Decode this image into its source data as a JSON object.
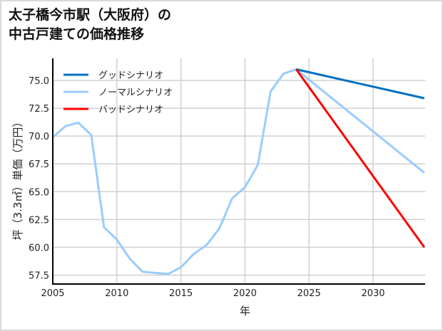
{
  "title": {
    "line1": "太子橋今市駅（大阪府）の",
    "line2": "中古戸建ての価格推移"
  },
  "chart_data": {
    "type": "line",
    "title": "太子橋今市駅（大阪府）の中古戸建ての価格推移",
    "xlabel": "年",
    "ylabel": "坪（3.3㎡）単価（万円）",
    "xlim": [
      2005,
      2034
    ],
    "ylim": [
      56.7,
      77.0
    ],
    "xticks": [
      2005,
      2010,
      2015,
      2020,
      2025,
      2030
    ],
    "yticks": [
      57.5,
      60.0,
      62.5,
      65.0,
      67.5,
      70.0,
      72.5,
      75.0
    ],
    "grid": true,
    "legend_position": "upper left",
    "series": [
      {
        "name": "グッドシナリオ",
        "color": "#0070c0",
        "x": [
          2024,
          2034
        ],
        "values": [
          76.0,
          73.4
        ]
      },
      {
        "name": "ノーマルシナリオ",
        "color": "#99ccff",
        "x": [
          2005,
          2006,
          2007,
          2008,
          2009,
          2010,
          2011,
          2012,
          2013,
          2014,
          2015,
          2016,
          2017,
          2018,
          2019,
          2020,
          2021,
          2022,
          2023,
          2024,
          2034
        ],
        "values": [
          69.9,
          70.9,
          71.2,
          70.1,
          61.8,
          60.7,
          59.0,
          57.8,
          57.7,
          57.6,
          58.2,
          59.4,
          60.2,
          61.7,
          64.4,
          65.4,
          67.4,
          74.0,
          75.6,
          76.0,
          66.7
        ]
      },
      {
        "name": "バッドシナリオ",
        "color": "#ff0000",
        "x": [
          2024,
          2034
        ],
        "values": [
          76.0,
          60.0
        ]
      }
    ]
  }
}
